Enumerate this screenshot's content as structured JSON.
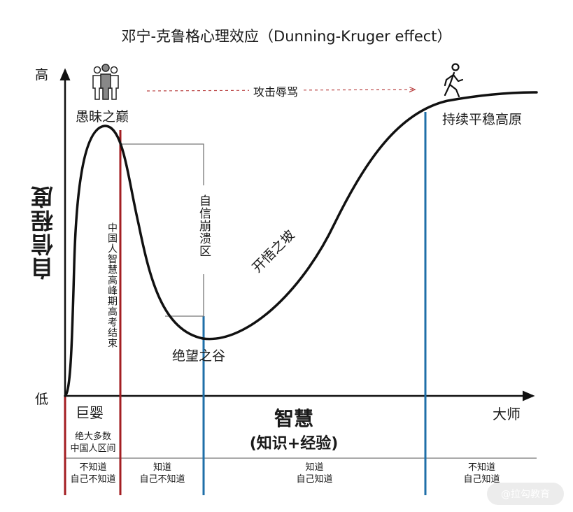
{
  "title": "邓宁-克鲁格心理效应（Dunning-Kruger effect）",
  "y_axis": {
    "label": "自信程度",
    "high": "高",
    "low": "低"
  },
  "x_axis": {
    "label_main": "智慧",
    "label_sub": "(知识+经验)",
    "start": "巨婴",
    "end": "大师"
  },
  "annotations": {
    "peak": "愚昧之巅",
    "valley": "绝望之谷",
    "slope": "开悟之坡",
    "plateau": "持续平稳高原",
    "collapse": "自信崩溃区",
    "china_peak": "中国人智慧高峰期高考结束",
    "attack": "攻击辱骂"
  },
  "bottom_notes": {
    "majority": "绝大多数\n中国人区间",
    "zones": [
      "不知道\n自己不知道",
      "知道\n自己不知道",
      "知道\n自己知道",
      "不知道\n自己知道"
    ]
  },
  "icons": [
    "group-people-icon",
    "walking-person-icon"
  ],
  "colors": {
    "curve": "#111111",
    "red_line": "#a31e22",
    "blue_line": "#1f6fa8",
    "attack_arrow": "#b94141",
    "bracket": "#777777"
  },
  "watermark": "@拉勾教育"
}
